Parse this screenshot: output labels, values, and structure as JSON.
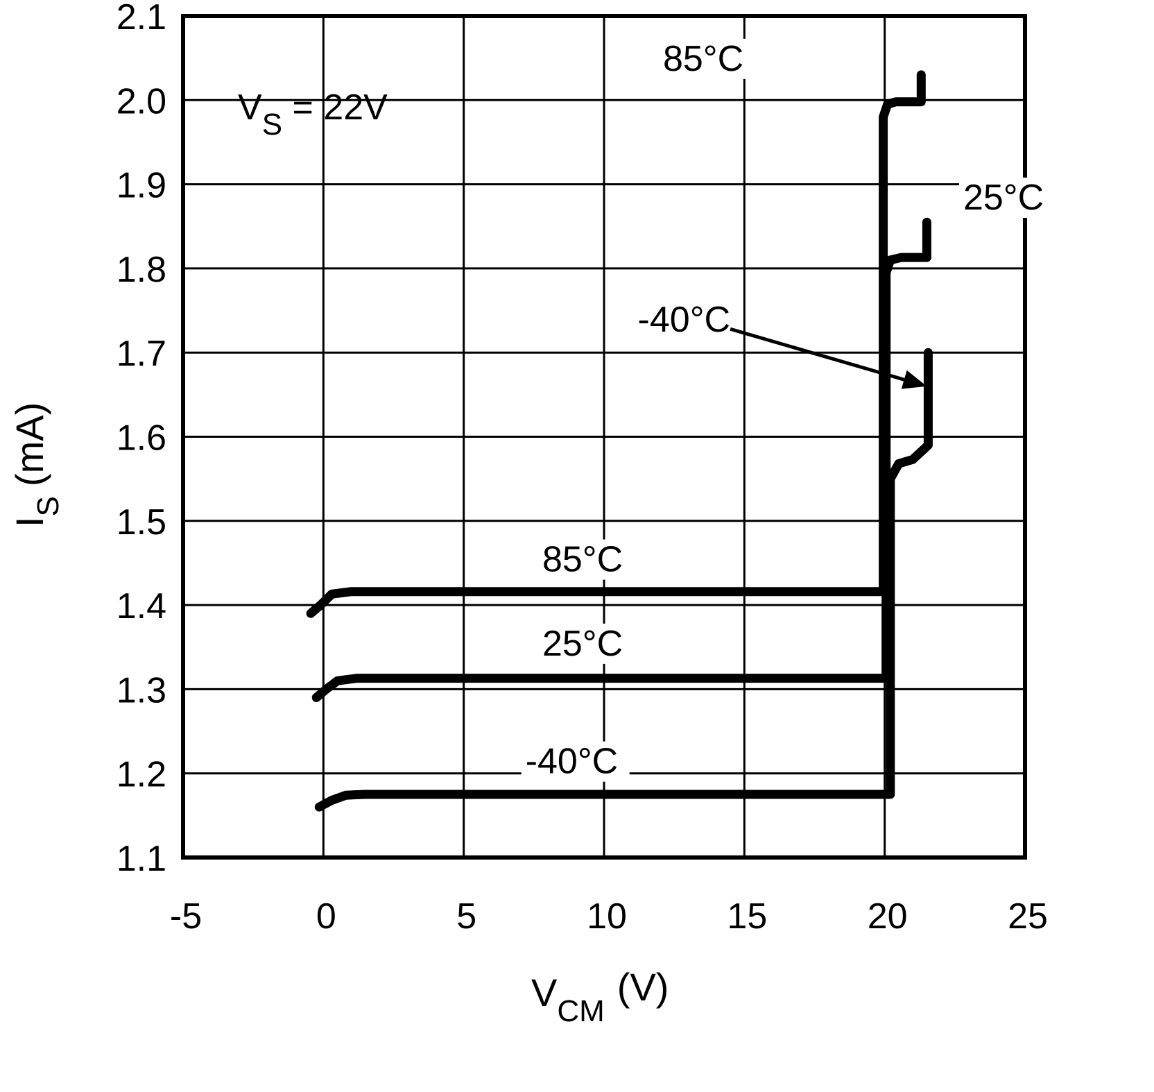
{
  "chart_data": {
    "type": "line",
    "title": "",
    "xlabel": "V_CM (V)",
    "xlabel_main": "V",
    "xlabel_sub": "CM",
    "xlabel_unit": "(V)",
    "ylabel": "I_S (mA)",
    "ylabel_main": "I",
    "ylabel_sub": "S",
    "ylabel_unit": "(mA)",
    "xlim": [
      -5,
      25
    ],
    "ylim": [
      1.1,
      2.1
    ],
    "grid": true,
    "x_ticks": [
      -5,
      0,
      5,
      10,
      15,
      20,
      25
    ],
    "x_tick_labels": [
      "-5",
      "0",
      "5",
      "10",
      "15",
      "20",
      "25"
    ],
    "y_ticks": [
      1.1,
      1.2,
      1.3,
      1.4,
      1.5,
      1.6,
      1.7,
      1.8,
      1.9,
      2.0,
      2.1
    ],
    "y_tick_labels": [
      "1.1",
      "1.2",
      "1.3",
      "1.4",
      "1.5",
      "1.6",
      "1.7",
      "1.8",
      "1.9",
      "2.0",
      "2.1"
    ],
    "annotation": {
      "main": "V",
      "sub": "S",
      "rest": " = 22V"
    },
    "series": [
      {
        "name": "85°C",
        "x": [
          -0.45,
          -0.1,
          0.3,
          1.0,
          5,
          10,
          15,
          19.95,
          19.95,
          20.1,
          20.4,
          21.3,
          21.3
        ],
        "y": [
          1.39,
          1.4,
          1.413,
          1.416,
          1.416,
          1.416,
          1.416,
          1.416,
          1.98,
          1.995,
          1.998,
          1.998,
          2.03
        ]
      },
      {
        "name": "25°C",
        "x": [
          -0.25,
          0.1,
          0.5,
          1.2,
          5,
          10,
          15,
          20.05,
          20.05,
          20.2,
          20.6,
          21.5,
          21.5
        ],
        "y": [
          1.29,
          1.3,
          1.31,
          1.313,
          1.313,
          1.313,
          1.313,
          1.313,
          1.795,
          1.81,
          1.813,
          1.813,
          1.855
        ]
      },
      {
        "name": "-40°C",
        "x": [
          -0.15,
          0.3,
          0.8,
          1.5,
          5,
          10,
          15,
          20.2,
          20.2,
          20.5,
          21.0,
          21.55,
          21.55
        ],
        "y": [
          1.16,
          1.168,
          1.174,
          1.175,
          1.175,
          1.175,
          1.175,
          1.175,
          1.55,
          1.568,
          1.573,
          1.59,
          1.7
        ]
      }
    ],
    "curve_labels": [
      {
        "text": "85°C",
        "x": 12.1,
        "y": 2.035
      },
      {
        "text": "25°C",
        "x": 22.8,
        "y": 1.87
      },
      {
        "text": "-40°C",
        "x": 11.2,
        "y": 1.725
      },
      {
        "text": "85°C",
        "x": 7.8,
        "y": 1.44
      },
      {
        "text": "25°C",
        "x": 7.8,
        "y": 1.34
      },
      {
        "text": "-40°C",
        "x": 7.2,
        "y": 1.2
      }
    ],
    "arrow": {
      "label": "-40°C",
      "from": [
        14.5,
        1.728
      ],
      "to": [
        21.5,
        1.66
      ]
    }
  }
}
